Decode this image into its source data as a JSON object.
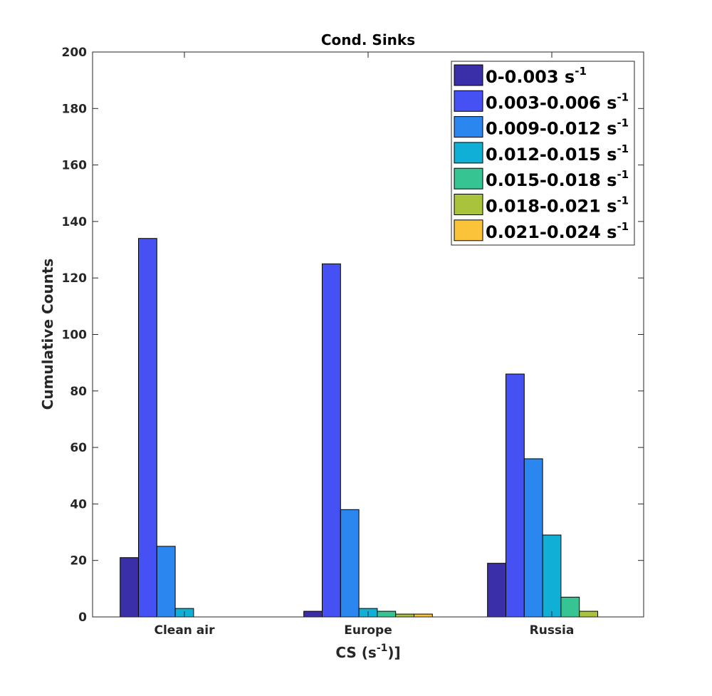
{
  "chart_data": {
    "type": "bar",
    "title": "Cond. Sinks",
    "xlabel": "CS (s",
    "xlabel_sup": "-1",
    "xlabel_suffix": ")]",
    "ylabel": "Cumulative Counts",
    "ylim": [
      0,
      200
    ],
    "yticks": [
      0,
      20,
      40,
      60,
      80,
      100,
      120,
      140,
      160,
      180,
      200
    ],
    "grid": false,
    "legend_position": "top-right",
    "categories": [
      "Clean air",
      "Europe",
      "Russia"
    ],
    "series": [
      {
        "name": "0-0.003 s",
        "name_sup": "-1",
        "color": "#3a2fa8",
        "values": [
          21,
          2,
          19
        ]
      },
      {
        "name": "0.003-0.006 s",
        "name_sup": "-1",
        "color": "#4551f2",
        "values": [
          134,
          125,
          86
        ]
      },
      {
        "name": "0.009-0.012 s",
        "name_sup": "-1",
        "color": "#2b87ef",
        "values": [
          25,
          38,
          56
        ]
      },
      {
        "name": "0.012-0.015 s",
        "name_sup": "-1",
        "color": "#10b0d6",
        "values": [
          3,
          3,
          29
        ]
      },
      {
        "name": "0.015-0.018 s",
        "name_sup": "-1",
        "color": "#35c492",
        "values": [
          0,
          2,
          7
        ]
      },
      {
        "name": "0.018-0.021 s",
        "name_sup": "-1",
        "color": "#a9c33c",
        "values": [
          0,
          1,
          2
        ]
      },
      {
        "name": "0.021-0.024 s",
        "name_sup": "-1",
        "color": "#fbc33a",
        "values": [
          0,
          1,
          0
        ]
      }
    ]
  }
}
